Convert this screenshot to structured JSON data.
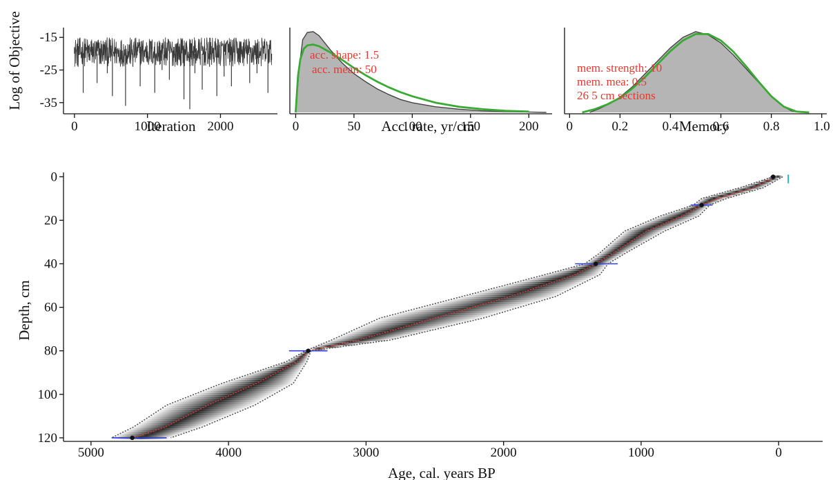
{
  "chart_data": [
    {
      "type": "line",
      "panel": "iterations",
      "xlabel": "Iteration",
      "ylabel": "Log of Objective",
      "xlim": [
        -150,
        2780
      ],
      "ylim": [
        -38,
        -12
      ],
      "xticks": [
        0,
        1000,
        2000
      ],
      "yticks": [
        -15,
        -25,
        -35
      ],
      "n_iterations": 2700,
      "series": [
        {
          "color": "#3a3a3a",
          "typical_range": [
            -24,
            -15
          ],
          "trace_samples": [
            [
              0,
              -18
            ],
            [
              50,
              -24
            ],
            [
              120,
              -32
            ],
            [
              200,
              -22
            ],
            [
              310,
              -29
            ],
            [
              450,
              -26
            ],
            [
              520,
              -33
            ],
            [
              600,
              -21
            ],
            [
              700,
              -36
            ],
            [
              800,
              -24
            ],
            [
              900,
              -30
            ],
            [
              1000,
              -22
            ],
            [
              1100,
              -32
            ],
            [
              1200,
              -25
            ],
            [
              1300,
              -28
            ],
            [
              1400,
              -23
            ],
            [
              1500,
              -34
            ],
            [
              1580,
              -37
            ],
            [
              1650,
              -26
            ],
            [
              1750,
              -31
            ],
            [
              1850,
              -24
            ],
            [
              1950,
              -33
            ],
            [
              2050,
              -27
            ],
            [
              2150,
              -30
            ],
            [
              2250,
              -23
            ],
            [
              2400,
              -29
            ],
            [
              2500,
              -26
            ],
            [
              2650,
              -32
            ],
            [
              2700,
              -22
            ]
          ]
        }
      ]
    },
    {
      "type": "area",
      "panel": "accumulation",
      "xlabel": "Acc. rate, yr/cm",
      "xlim": [
        -5,
        220
      ],
      "xticks": [
        0,
        50,
        100,
        150,
        200
      ],
      "annotations": [
        "acc. shape: 1.5",
        "acc. mean: 50"
      ],
      "series": [
        {
          "role": "posterior",
          "color": "#b5b5b5",
          "x": [
            0,
            3,
            6,
            10,
            15,
            20,
            25,
            30,
            40,
            50,
            60,
            70,
            80,
            90,
            100,
            120,
            140,
            160,
            180,
            200,
            215
          ],
          "y": [
            0.0,
            0.55,
            0.9,
            0.99,
            1.0,
            0.95,
            0.86,
            0.77,
            0.61,
            0.48,
            0.38,
            0.29,
            0.22,
            0.16,
            0.12,
            0.07,
            0.04,
            0.02,
            0.01,
            0.005,
            0.0
          ]
        },
        {
          "role": "prior",
          "color": "#3aaa35",
          "x": [
            0,
            2,
            4,
            7,
            10,
            15,
            20,
            25,
            30,
            40,
            50,
            60,
            70,
            80,
            90,
            100,
            120,
            140,
            160,
            180,
            200
          ],
          "y": [
            0.0,
            0.45,
            0.66,
            0.79,
            0.83,
            0.84,
            0.82,
            0.78,
            0.74,
            0.65,
            0.55,
            0.46,
            0.38,
            0.31,
            0.25,
            0.2,
            0.12,
            0.07,
            0.04,
            0.02,
            0.01
          ]
        }
      ]
    },
    {
      "type": "area",
      "panel": "memory",
      "xlabel": "Memory",
      "xlim": [
        -0.02,
        1.02
      ],
      "xticks": [
        0,
        0.2,
        0.4,
        0.6,
        0.8,
        1.0
      ],
      "xtick_labels": [
        "0",
        "0.2",
        "0.4",
        "0.6",
        "0.8",
        "1.0"
      ],
      "annotations": [
        "mem. strength: 10",
        "mem. mea: 0.5",
        "26 5 cm sections"
      ],
      "series": [
        {
          "role": "posterior",
          "color": "#b5b5b5",
          "x": [
            0.08,
            0.12,
            0.16,
            0.2,
            0.25,
            0.3,
            0.35,
            0.4,
            0.45,
            0.5,
            0.55,
            0.6,
            0.65,
            0.7,
            0.75,
            0.8,
            0.85,
            0.88,
            0.92
          ],
          "y": [
            0.0,
            0.05,
            0.11,
            0.19,
            0.32,
            0.48,
            0.64,
            0.8,
            0.93,
            1.0,
            0.96,
            0.86,
            0.71,
            0.54,
            0.37,
            0.2,
            0.07,
            0.02,
            0.0
          ]
        },
        {
          "role": "prior",
          "color": "#3aaa35",
          "x": [
            0.05,
            0.1,
            0.15,
            0.2,
            0.25,
            0.3,
            0.35,
            0.4,
            0.45,
            0.5,
            0.55,
            0.6,
            0.65,
            0.7,
            0.75,
            0.8,
            0.85,
            0.9,
            0.95
          ],
          "y": [
            0.0,
            0.04,
            0.1,
            0.18,
            0.3,
            0.44,
            0.6,
            0.76,
            0.89,
            0.97,
            0.97,
            0.89,
            0.75,
            0.57,
            0.38,
            0.2,
            0.07,
            0.01,
            0.0
          ]
        }
      ]
    },
    {
      "type": "area",
      "panel": "age-depth",
      "xlabel": "Age, cal. years BP",
      "ylabel": "Depth, cm",
      "xlim": [
        5200,
        -320
      ],
      "ylim": [
        121,
        -2
      ],
      "xticks": [
        5000,
        4000,
        3000,
        2000,
        1000,
        0
      ],
      "yticks": [
        0,
        20,
        40,
        60,
        80,
        100,
        120
      ],
      "grid": false,
      "series": [
        {
          "role": "upper-95%-envelope",
          "color": "#555555",
          "depth": [
            0,
            5,
            10,
            13,
            18,
            25,
            35,
            40,
            45,
            55,
            65,
            75,
            80,
            85,
            95,
            105,
            115,
            120
          ],
          "age": [
            40,
            280,
            560,
            620,
            860,
            1120,
            1300,
            1410,
            1700,
            2300,
            2900,
            3250,
            3440,
            3580,
            4050,
            4450,
            4690,
            4850
          ]
        },
        {
          "role": "lower-95%-envelope",
          "color": "#555555",
          "depth": [
            0,
            5,
            10,
            13,
            18,
            25,
            35,
            40,
            45,
            55,
            65,
            75,
            80,
            85,
            95,
            105,
            115,
            120
          ],
          "age": [
            -30,
            110,
            380,
            500,
            580,
            830,
            1110,
            1240,
            1300,
            1620,
            2150,
            2820,
            3400,
            3430,
            3530,
            3810,
            4190,
            4420
          ]
        },
        {
          "role": "mean-age",
          "color": "#e8372f",
          "depth": [
            0,
            5,
            10,
            13,
            18,
            25,
            35,
            40,
            45,
            55,
            65,
            75,
            80,
            85,
            95,
            105,
            115,
            120
          ],
          "age": [
            20,
            180,
            440,
            560,
            700,
            960,
            1200,
            1330,
            1480,
            1950,
            2500,
            3050,
            3410,
            3500,
            3800,
            4150,
            4460,
            4690
          ]
        },
        {
          "role": "dated-levels",
          "color": "#2f3fd6",
          "depth": [
            0,
            13,
            40,
            80,
            120
          ],
          "age": [
            40,
            560,
            1330,
            3420,
            4700
          ],
          "age_min": [
            20,
            480,
            1170,
            3280,
            4450
          ],
          "age_max": [
            60,
            640,
            1480,
            3560,
            4850
          ]
        }
      ]
    }
  ]
}
